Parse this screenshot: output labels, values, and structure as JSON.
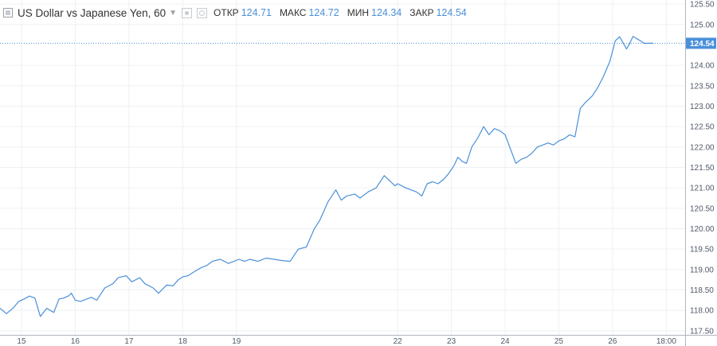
{
  "legend": {
    "title": "US Dollar vs Japanese Yen, 60",
    "open_label": "ОТКР",
    "open_value": "124.71",
    "high_label": "МАКС",
    "high_value": "124.72",
    "low_label": "МИН",
    "low_value": "124.34",
    "close_label": "ЗАКР",
    "close_value": "124.54"
  },
  "colors": {
    "line": "#4a90d9",
    "grid": "#eef0f3",
    "axis_text": "#4f5966",
    "last_label_bg": "#4a90d9"
  },
  "chart_data": {
    "type": "line",
    "title": "US Dollar vs Japanese Yen, 60",
    "xlabel": "",
    "ylabel": "",
    "grid": true,
    "last_value_label": "124.54",
    "ylim": [
      117.4,
      125.6
    ],
    "xlim": [
      14.6,
      27.35
    ],
    "x_tick_values": [
      15,
      16,
      17,
      18,
      19,
      22,
      23,
      24,
      25,
      26,
      27
    ],
    "x_tick_labels": [
      "15",
      "16",
      "17",
      "18",
      "19",
      "22",
      "23",
      "24",
      "25",
      "26",
      "18:00"
    ],
    "y_tick_values": [
      117.5,
      118.0,
      118.5,
      119.0,
      119.5,
      120.0,
      120.5,
      121.0,
      121.5,
      122.0,
      122.5,
      123.0,
      123.5,
      124.0,
      125.0,
      125.5
    ],
    "y_tick_labels": [
      "117.50",
      "118.00",
      "118.50",
      "119.00",
      "119.50",
      "120.00",
      "120.50",
      "121.00",
      "121.50",
      "122.00",
      "122.50",
      "123.00",
      "123.50",
      "124.00",
      "125.00",
      "125.50"
    ],
    "series": [
      {
        "x": [
          14.6,
          14.72,
          14.84,
          14.95,
          15.05,
          15.15,
          15.25,
          15.35,
          15.47,
          15.6,
          15.7,
          15.78,
          15.87,
          15.93,
          16.0,
          16.1,
          16.22,
          16.3,
          16.4,
          16.55,
          16.7,
          16.8,
          16.95,
          17.05,
          17.2,
          17.3,
          17.45,
          17.55,
          17.7,
          17.82,
          17.92,
          18.0,
          18.1,
          18.22,
          18.35,
          18.45,
          18.55,
          18.7,
          18.85,
          18.95,
          19.05,
          19.15,
          19.25,
          19.4,
          19.55,
          19.7,
          19.85,
          20.0,
          20.15,
          20.3,
          20.45,
          20.55,
          20.7,
          20.85,
          20.95,
          21.05,
          21.2,
          21.3,
          21.45,
          21.6,
          21.75,
          21.95,
          22.0,
          22.15,
          22.25,
          22.35,
          22.45,
          22.55,
          22.65,
          22.75,
          22.85,
          22.95,
          23.05,
          23.12,
          23.2,
          23.28,
          23.38,
          23.48,
          23.6,
          23.7,
          23.8,
          23.9,
          24.0,
          24.1,
          24.2,
          24.3,
          24.4,
          24.5,
          24.6,
          24.7,
          24.8,
          24.9,
          25.0,
          25.1,
          25.2,
          25.3,
          25.4,
          25.5,
          25.62,
          25.72,
          25.82,
          25.95,
          26.05,
          26.13,
          26.2,
          26.26,
          26.32,
          26.38,
          26.45,
          26.52,
          26.58,
          26.64,
          26.7,
          26.76
        ],
        "y": [
          118.05,
          117.92,
          118.05,
          118.22,
          118.28,
          118.35,
          118.3,
          117.85,
          118.05,
          117.95,
          118.28,
          118.3,
          118.35,
          118.42,
          118.25,
          118.22,
          118.28,
          118.32,
          118.25,
          118.55,
          118.65,
          118.8,
          118.85,
          118.7,
          118.8,
          118.65,
          118.55,
          118.42,
          118.62,
          118.6,
          118.75,
          118.82,
          118.85,
          118.95,
          119.05,
          119.1,
          119.2,
          119.25,
          119.15,
          119.2,
          119.25,
          119.2,
          119.25,
          119.2,
          119.28,
          119.25,
          119.22,
          119.2,
          119.5,
          119.55,
          120.0,
          120.2,
          120.65,
          120.95,
          120.7,
          120.8,
          120.85,
          120.75,
          120.9,
          121.0,
          121.3,
          121.05,
          121.1,
          121.0,
          120.95,
          120.9,
          120.8,
          121.1,
          121.15,
          121.1,
          121.2,
          121.35,
          121.55,
          121.75,
          121.65,
          121.6,
          122.0,
          122.2,
          122.5,
          122.3,
          122.45,
          122.4,
          122.3,
          121.95,
          121.6,
          121.7,
          121.75,
          121.85,
          122.0,
          122.05,
          122.1,
          122.05,
          122.15,
          122.2,
          122.3,
          122.25,
          122.95,
          123.1,
          123.25,
          123.45,
          123.7,
          124.1,
          124.6,
          124.7,
          124.54,
          124.4,
          124.54,
          124.71,
          124.65,
          124.6,
          124.54,
          124.54,
          124.54,
          124.54
        ]
      }
    ]
  }
}
